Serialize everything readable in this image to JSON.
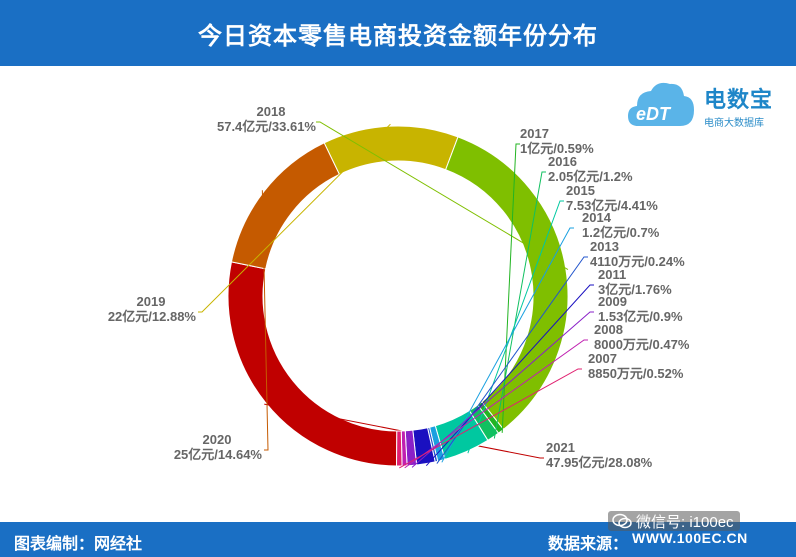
{
  "header": {
    "title": "今日资本零售电商投资金额年份分布"
  },
  "footer": {
    "left": "图表编制：网经社",
    "right": "数据来源：",
    "wechat": "微信号: i100ec",
    "url": "WWW.100EC.CN"
  },
  "logo": {
    "text": "电数宝",
    "sub": "电商大数据库",
    "mark": "eDT"
  },
  "colors": {
    "header_bg": "#1a6fc4",
    "label_text": "#666666"
  },
  "chart_data": {
    "type": "pie",
    "donut": true,
    "title": "今日资本零售电商投资金额年份分布",
    "unit_note": "亿元",
    "slices": [
      {
        "year": "2021",
        "text": "47.95亿元/28.08%",
        "percent": 28.08,
        "color": "#c00000"
      },
      {
        "year": "2020",
        "text": "25亿元/14.64%",
        "percent": 14.64,
        "color": "#c55a00"
      },
      {
        "year": "2019",
        "text": "22亿元/12.88%",
        "percent": 12.88,
        "color": "#c8b400"
      },
      {
        "year": "2018",
        "text": "57.4亿元/33.61%",
        "percent": 33.61,
        "color": "#7fbf00"
      },
      {
        "year": "2017",
        "text": "1亿元/0.59%",
        "percent": 0.59,
        "color": "#22b422"
      },
      {
        "year": "2016",
        "text": "2.05亿元/1.2%",
        "percent": 1.2,
        "color": "#10c060"
      },
      {
        "year": "2015",
        "text": "7.53亿元/4.41%",
        "percent": 4.41,
        "color": "#00c8a0"
      },
      {
        "year": "2014",
        "text": "1.2亿元/0.7%",
        "percent": 0.7,
        "color": "#1aa0e0"
      },
      {
        "year": "2013",
        "text": "4110万元/0.24%",
        "percent": 0.24,
        "color": "#2255cc"
      },
      {
        "year": "2011",
        "text": "3亿元/1.76%",
        "percent": 1.76,
        "color": "#1a10c0"
      },
      {
        "year": "2009",
        "text": "1.53亿元/0.9%",
        "percent": 0.9,
        "color": "#8a20c8"
      },
      {
        "year": "2008",
        "text": "8000万元/0.47%",
        "percent": 0.47,
        "color": "#c020b0"
      },
      {
        "year": "2007",
        "text": "8850万元/0.52%",
        "percent": 0.52,
        "color": "#e02070"
      }
    ]
  }
}
